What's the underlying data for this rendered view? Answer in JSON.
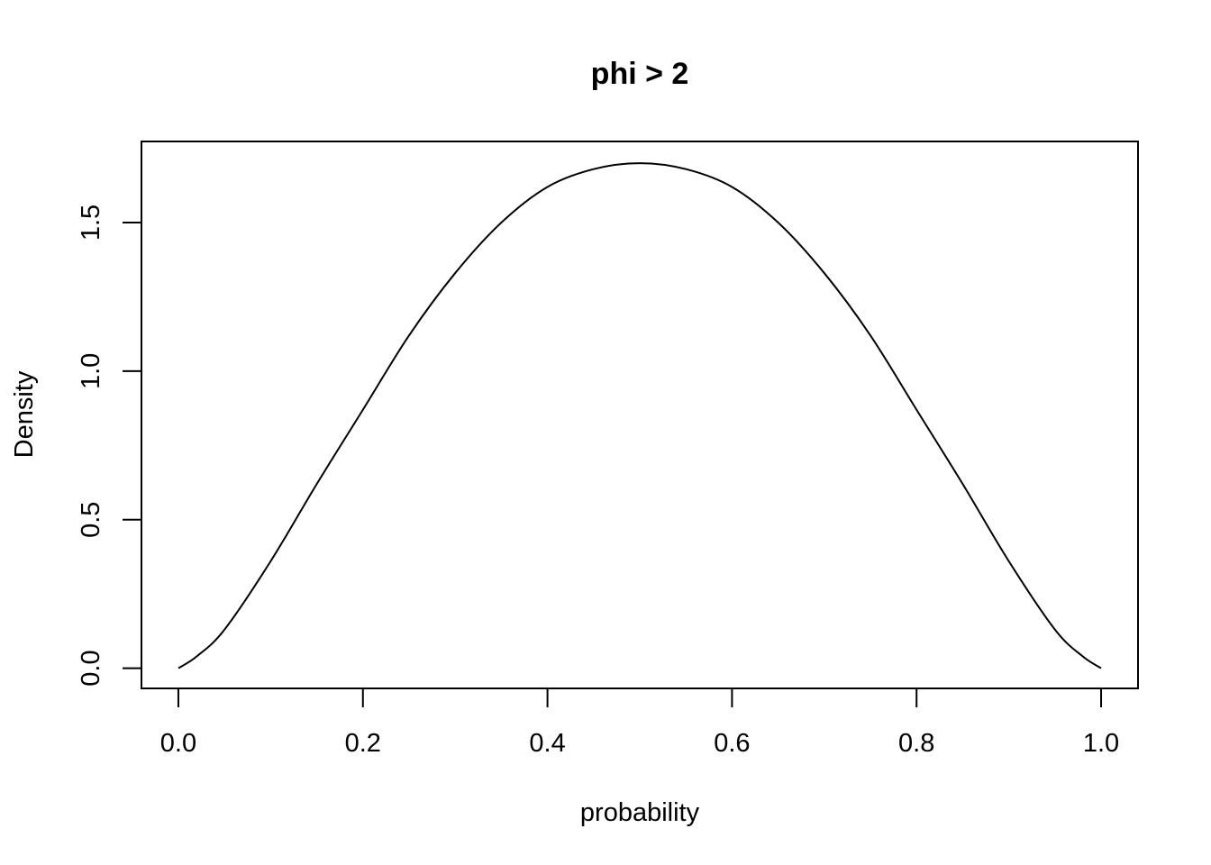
{
  "chart_data": {
    "type": "line",
    "title": "phi > 2",
    "xlabel": "probability",
    "ylabel": "Density",
    "xlim": [
      -0.04,
      1.04
    ],
    "ylim": [
      -0.068,
      1.773
    ],
    "x_ticks": [
      "0.0",
      "0.2",
      "0.4",
      "0.6",
      "0.8",
      "1.0"
    ],
    "y_ticks": [
      "0.0",
      "0.5",
      "1.0",
      "1.5"
    ],
    "grid": false,
    "legend": "none",
    "color": "#000000",
    "series": [
      {
        "x": [
          0.0,
          0.02,
          0.05,
          0.1,
          0.15,
          0.2,
          0.25,
          0.3,
          0.35,
          0.4,
          0.45,
          0.5,
          0.55,
          0.6,
          0.65,
          0.7,
          0.75,
          0.8,
          0.85,
          0.9,
          0.95,
          0.98,
          1.0
        ],
        "values": [
          0.0,
          0.04,
          0.13,
          0.36,
          0.62,
          0.87,
          1.12,
          1.33,
          1.5,
          1.62,
          1.68,
          1.7,
          1.68,
          1.62,
          1.5,
          1.33,
          1.12,
          0.87,
          0.62,
          0.36,
          0.13,
          0.04,
          0.0
        ]
      }
    ]
  }
}
